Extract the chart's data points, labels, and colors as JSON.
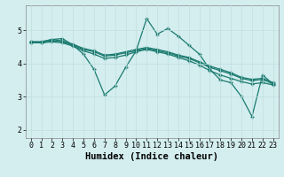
{
  "xlabel": "Humidex (Indice chaleur)",
  "background_color": "#d4eef0",
  "line_color": "#1a7a6e",
  "grid_color": "#c0dede",
  "xlim": [
    -0.5,
    23.5
  ],
  "ylim": [
    1.75,
    5.75
  ],
  "xticks": [
    0,
    1,
    2,
    3,
    4,
    5,
    6,
    7,
    8,
    9,
    10,
    11,
    12,
    13,
    14,
    15,
    16,
    17,
    18,
    19,
    20,
    21,
    22,
    23
  ],
  "yticks": [
    2,
    3,
    4,
    5
  ],
  "lines": [
    {
      "x": [
        0,
        1,
        2,
        3,
        4,
        5,
        6,
        7,
        8,
        9,
        10,
        11,
        12,
        13,
        14,
        15,
        16,
        17,
        18,
        19,
        20,
        21,
        22,
        23
      ],
      "y": [
        4.65,
        4.65,
        4.72,
        4.75,
        4.55,
        4.28,
        3.82,
        3.05,
        3.32,
        3.88,
        4.38,
        5.35,
        4.88,
        5.05,
        4.82,
        4.55,
        4.28,
        3.82,
        3.5,
        3.42,
        3.0,
        2.4,
        3.65,
        3.38
      ]
    },
    {
      "x": [
        0,
        1,
        2,
        3,
        4,
        5,
        6,
        7,
        8,
        9,
        10,
        11,
        12,
        13,
        14,
        15,
        16,
        17,
        18,
        19,
        20,
        21,
        22,
        23
      ],
      "y": [
        4.65,
        4.65,
        4.72,
        4.68,
        4.58,
        4.45,
        4.38,
        4.25,
        4.28,
        4.35,
        4.42,
        4.48,
        4.42,
        4.35,
        4.25,
        4.18,
        4.05,
        3.92,
        3.82,
        3.72,
        3.58,
        3.52,
        3.55,
        3.42
      ]
    },
    {
      "x": [
        0,
        1,
        2,
        3,
        4,
        5,
        6,
        7,
        8,
        9,
        10,
        11,
        12,
        13,
        14,
        15,
        16,
        17,
        18,
        19,
        20,
        21,
        22,
        23
      ],
      "y": [
        4.62,
        4.62,
        4.68,
        4.65,
        4.55,
        4.42,
        4.35,
        4.22,
        4.25,
        4.32,
        4.38,
        4.45,
        4.38,
        4.32,
        4.22,
        4.15,
        4.02,
        3.88,
        3.78,
        3.68,
        3.55,
        3.48,
        3.52,
        3.38
      ]
    },
    {
      "x": [
        0,
        1,
        2,
        3,
        4,
        5,
        6,
        7,
        8,
        9,
        10,
        11,
        12,
        13,
        14,
        15,
        16,
        17,
        18,
        19,
        20,
        21,
        22,
        23
      ],
      "y": [
        4.62,
        4.62,
        4.65,
        4.62,
        4.52,
        4.38,
        4.28,
        4.15,
        4.18,
        4.25,
        4.35,
        4.42,
        4.35,
        4.28,
        4.18,
        4.08,
        3.95,
        3.78,
        3.65,
        3.55,
        3.45,
        3.38,
        3.42,
        3.35
      ]
    }
  ],
  "marker": "+",
  "markersize": 3.5,
  "markeredgewidth": 1.0,
  "linewidth": 0.9,
  "tick_fontsize": 6,
  "label_fontsize": 7.5
}
